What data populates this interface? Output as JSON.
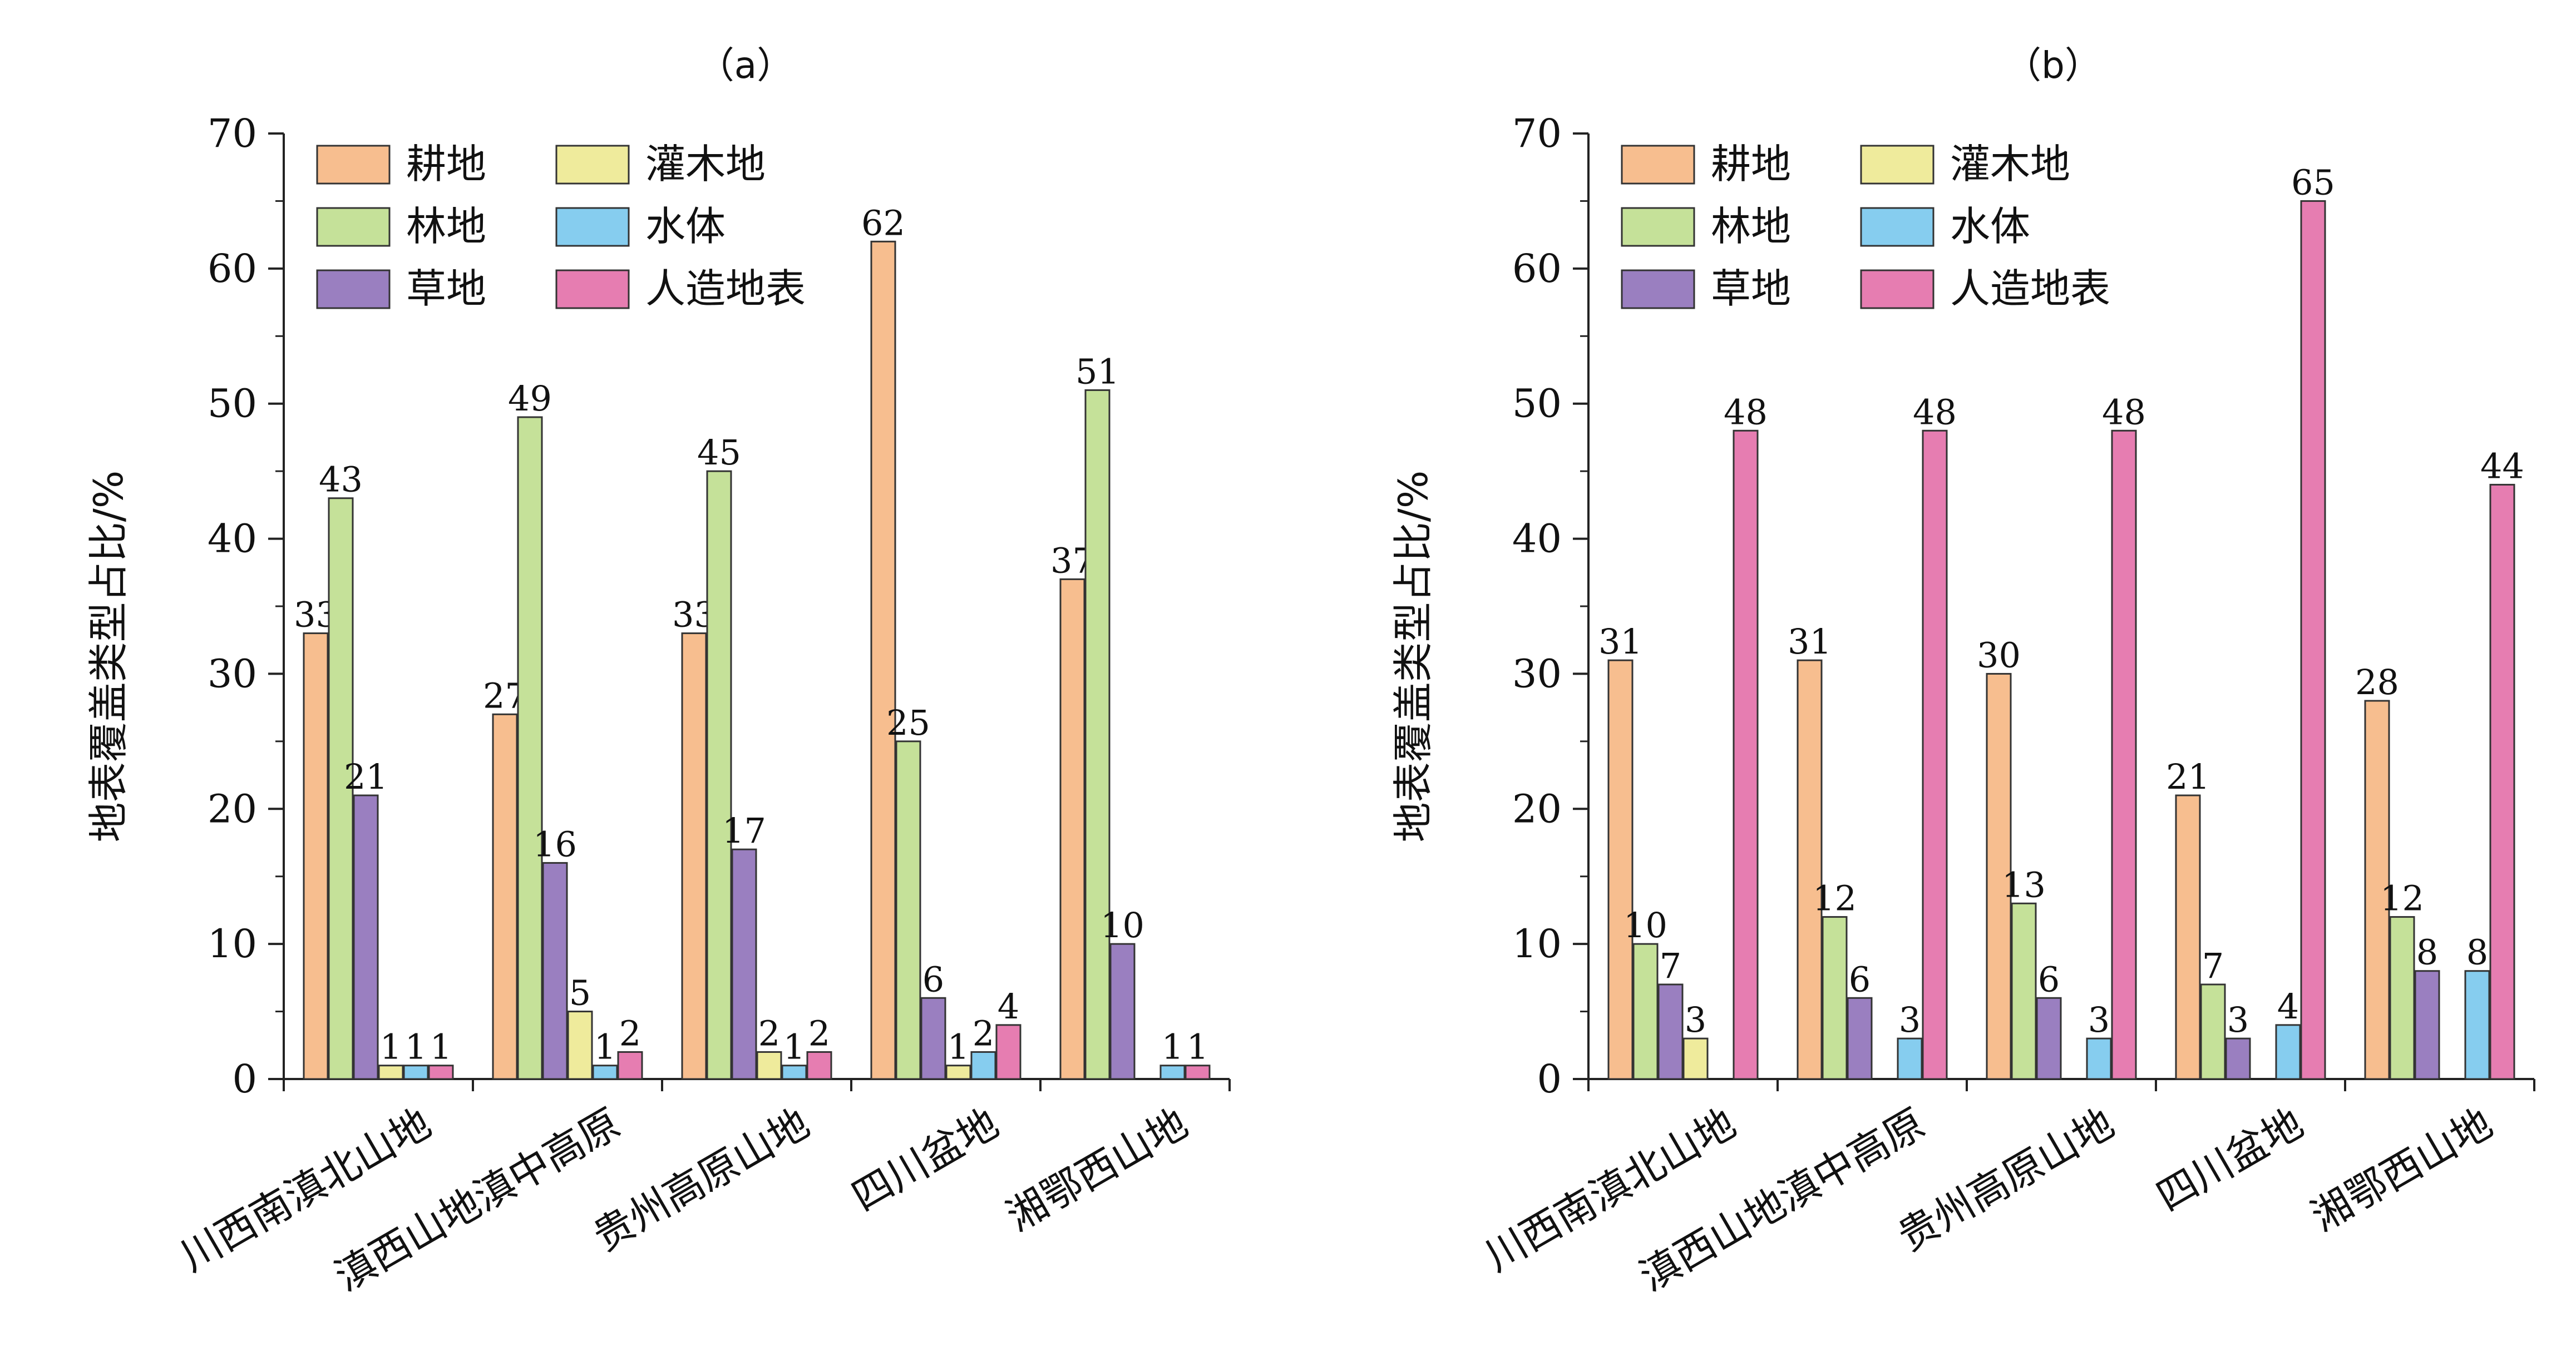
{
  "chart_data": [
    {
      "type": "bar",
      "title": "（a）",
      "ylabel": "地表覆盖类型占比/%",
      "xlabel": "",
      "ylim": [
        0,
        70
      ],
      "yticks": [
        0,
        10,
        20,
        30,
        40,
        50,
        60,
        70
      ],
      "categories": [
        "川西南滇北山地",
        "滇西山地滇中高原",
        "贵州高原山地",
        "四川盆地",
        "湘鄂西山地"
      ],
      "series": [
        {
          "name": "耕地",
          "color": "#F7BE8F",
          "values": [
            33,
            27,
            33,
            62,
            37
          ]
        },
        {
          "name": "林地",
          "color": "#C5E199",
          "values": [
            43,
            49,
            45,
            25,
            51
          ]
        },
        {
          "name": "草地",
          "color": "#9A7FC0",
          "values": [
            21,
            16,
            17,
            6,
            10
          ]
        },
        {
          "name": "灌木地",
          "color": "#EFEB9C",
          "values": [
            1,
            5,
            2,
            1,
            null
          ]
        },
        {
          "name": "水体",
          "color": "#86CDEF",
          "values": [
            1,
            1,
            1,
            2,
            1
          ]
        },
        {
          "name": "人造地表",
          "color": "#E67DB1",
          "values": [
            1,
            2,
            2,
            4,
            1
          ]
        }
      ],
      "legend": {
        "position": "top-left",
        "columns": 2,
        "order": [
          "耕地",
          "灌木地",
          "林地",
          "水体",
          "草地",
          "人造地表"
        ]
      },
      "grid": false
    },
    {
      "type": "bar",
      "title": "（b）",
      "ylabel": "地表覆盖类型占比/%",
      "xlabel": "",
      "ylim": [
        0,
        70
      ],
      "yticks": [
        0,
        10,
        20,
        30,
        40,
        50,
        60,
        70
      ],
      "categories": [
        "川西南滇北山地",
        "滇西山地滇中高原",
        "贵州高原山地",
        "四川盆地",
        "湘鄂西山地"
      ],
      "series": [
        {
          "name": "耕地",
          "color": "#F7BE8F",
          "values": [
            31,
            31,
            30,
            21,
            28
          ]
        },
        {
          "name": "林地",
          "color": "#C5E199",
          "values": [
            10,
            12,
            13,
            7,
            12
          ]
        },
        {
          "name": "草地",
          "color": "#9A7FC0",
          "values": [
            7,
            6,
            6,
            3,
            8
          ]
        },
        {
          "name": "灌木地",
          "color": "#EFEB9C",
          "values": [
            3,
            null,
            null,
            null,
            null
          ]
        },
        {
          "name": "水体",
          "color": "#86CDEF",
          "values": [
            null,
            3,
            3,
            4,
            8
          ]
        },
        {
          "name": "人造地表",
          "color": "#E67DB1",
          "values": [
            48,
            48,
            48,
            65,
            44
          ]
        }
      ],
      "legend": {
        "position": "top-left",
        "columns": 2,
        "order": [
          "耕地",
          "灌木地",
          "林地",
          "水体",
          "草地",
          "人造地表"
        ]
      },
      "grid": false
    }
  ]
}
